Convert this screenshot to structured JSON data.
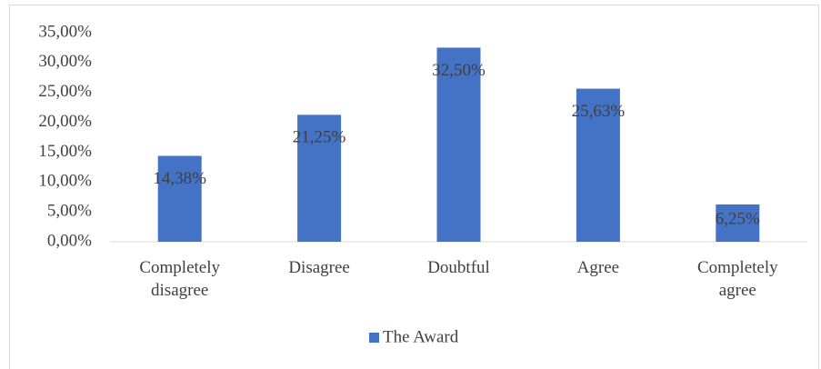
{
  "chart_data": {
    "type": "bar",
    "categories": [
      "Completely disagree",
      "Disagree",
      "Doubtful",
      "Agree",
      "Completely agree"
    ],
    "series": [
      {
        "name": "The Award",
        "color": "#4472c4",
        "values": [
          14.38,
          21.25,
          32.5,
          25.63,
          6.25
        ],
        "value_labels": [
          "14,38%",
          "21,25%",
          "32,50%",
          "25,63%",
          "6,25%"
        ]
      }
    ],
    "ylim": [
      0,
      35
    ],
    "yticks": [
      {
        "value": 0,
        "label": "0,00%"
      },
      {
        "value": 5,
        "label": "5,00%"
      },
      {
        "value": 10,
        "label": "10,00%"
      },
      {
        "value": 15,
        "label": "15,00%"
      },
      {
        "value": 20,
        "label": "20,00%"
      },
      {
        "value": 25,
        "label": "25,00%"
      },
      {
        "value": 30,
        "label": "30,00%"
      },
      {
        "value": 35,
        "label": "35,00%"
      }
    ],
    "grid": false,
    "legend": "bottom"
  }
}
